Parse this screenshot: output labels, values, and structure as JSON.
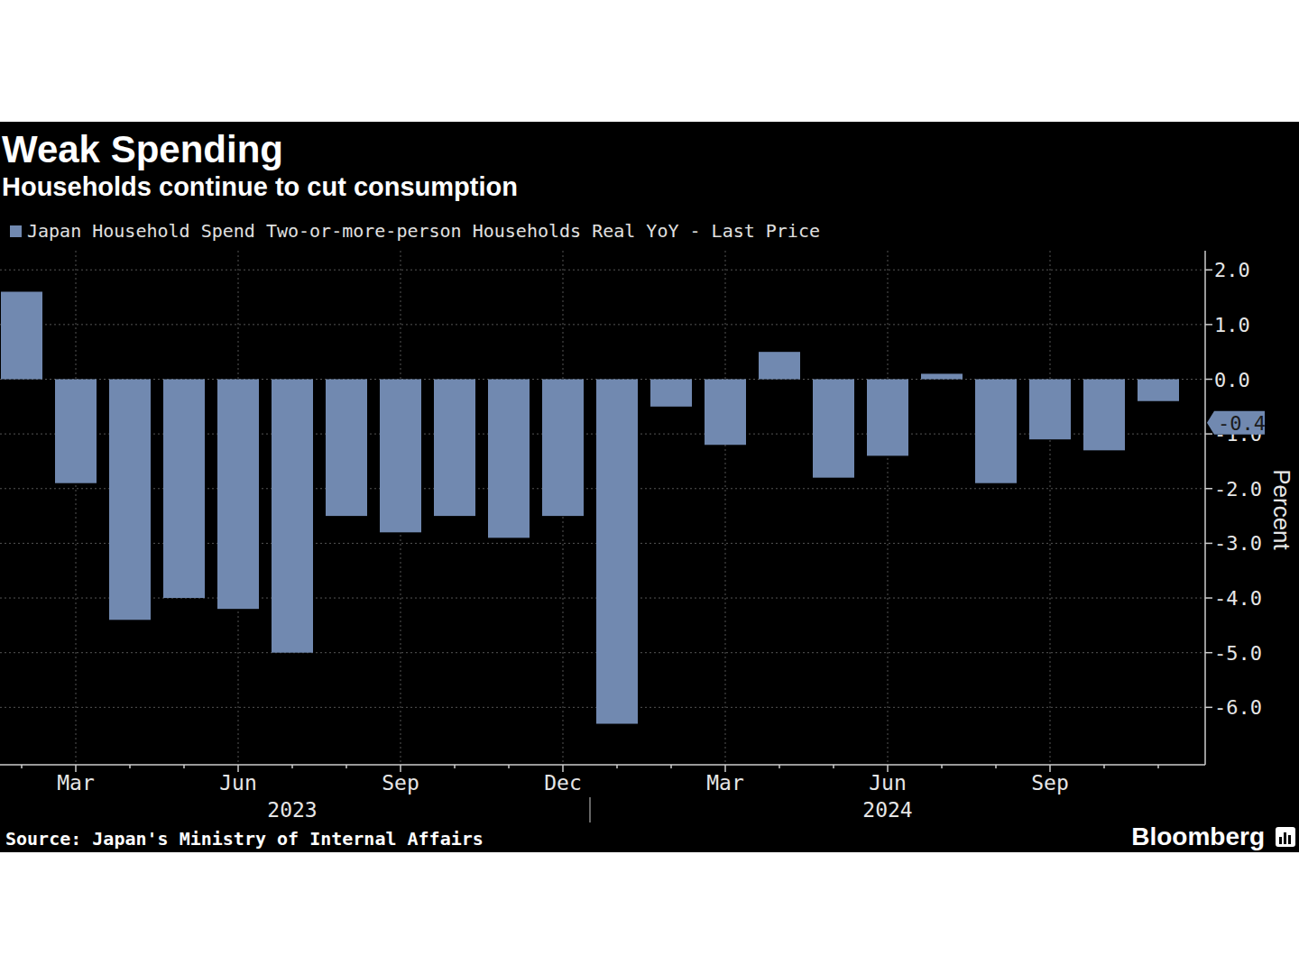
{
  "chart_data": {
    "type": "bar",
    "title": "Weak Spending",
    "subtitle": "Households continue to cut consumption",
    "categories": [
      null,
      "Mar",
      null,
      null,
      "Jun",
      null,
      null,
      "Sep",
      null,
      null,
      "Dec",
      null,
      null,
      "Mar",
      null,
      null,
      "Jun",
      null,
      null,
      "Sep",
      null,
      null
    ],
    "category_groups": [
      {
        "label": "2023",
        "start": 0,
        "end": 10
      },
      {
        "label": "2024",
        "start": 11,
        "end": 21
      }
    ],
    "series": [
      {
        "name": "Japan Household Spend Two-or-more-person Households Real YoY - Last Price",
        "color": "#7189b0",
        "values": [
          1.6,
          -1.9,
          -4.4,
          -4.0,
          -4.2,
          -5.0,
          -2.5,
          -2.8,
          -2.5,
          -2.9,
          -2.5,
          -6.3,
          -0.5,
          -1.2,
          0.5,
          -1.8,
          -1.4,
          0.1,
          -1.9,
          -1.1,
          -1.3,
          -0.4
        ],
        "value_labels": [
          null,
          null,
          null,
          null,
          null,
          null,
          null,
          null,
          null,
          null,
          null,
          null,
          null,
          null,
          null,
          null,
          null,
          null,
          null,
          null,
          null,
          "-0.4"
        ]
      }
    ],
    "ylim": [
      -7.05,
      2.35
    ],
    "yticks": [
      {
        "value": 2,
        "label": "2.0"
      },
      {
        "value": 1,
        "label": "1.0"
      },
      {
        "value": 0,
        "label": "0.0"
      },
      {
        "value": -1,
        "label": "-1.0"
      },
      {
        "value": -2,
        "label": "-2.0"
      },
      {
        "value": -3,
        "label": "-3.0"
      },
      {
        "value": -4,
        "label": "-4.0"
      },
      {
        "value": -5,
        "label": "-5.0"
      },
      {
        "value": -6,
        "label": "-6.0"
      }
    ],
    "y_label": "Percent",
    "grid": true,
    "source": "Source: Japan's Ministry of Internal Affairs",
    "brand": "Bloomberg"
  }
}
